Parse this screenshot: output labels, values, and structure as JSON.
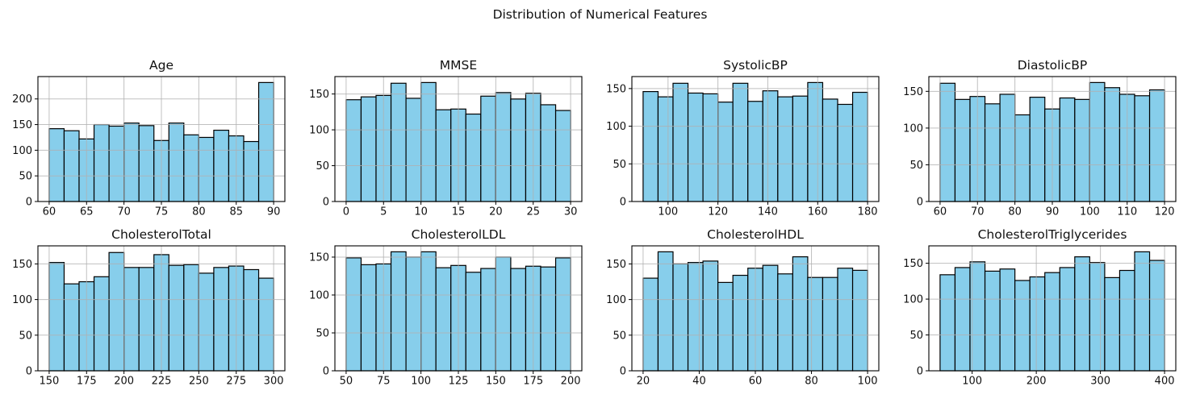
{
  "suptitle": "Distribution of Numerical Features",
  "style": {
    "bar_fill": "#87CEEB",
    "bar_edge": "#000000",
    "grid_color": "#b0b0b0",
    "axis_color": "#000000",
    "background": "#ffffff",
    "text_color": "#111111"
  },
  "chart_data": [
    {
      "type": "bar",
      "subtype": "histogram",
      "title": "Age",
      "bins": 15,
      "bin_start": 60,
      "bin_end": 90,
      "values": [
        142,
        138,
        122,
        150,
        147,
        153,
        148,
        119,
        153,
        130,
        125,
        139,
        128,
        117,
        232
      ],
      "x_ticks": [
        60,
        65,
        70,
        75,
        80,
        85,
        90
      ],
      "y_ticks": [
        0,
        50,
        100,
        150,
        200
      ],
      "xlim": [
        58.5,
        91.5
      ],
      "ylim": [
        0,
        243.6
      ],
      "xlabel": "",
      "ylabel": "",
      "grid": true,
      "legend": false
    },
    {
      "type": "bar",
      "subtype": "histogram",
      "title": "MMSE",
      "bins": 15,
      "bin_start": 0,
      "bin_end": 30,
      "values": [
        142,
        146,
        148,
        165,
        144,
        166,
        128,
        129,
        122,
        147,
        152,
        143,
        151,
        135,
        127
      ],
      "x_ticks": [
        0,
        5,
        10,
        15,
        20,
        25,
        30
      ],
      "y_ticks": [
        0,
        50,
        100,
        150
      ],
      "xlim": [
        -1.5,
        31.5
      ],
      "ylim": [
        0,
        174.3
      ],
      "xlabel": "",
      "ylabel": "",
      "grid": true,
      "legend": false
    },
    {
      "type": "bar",
      "subtype": "histogram",
      "title": "SystolicBP",
      "bins": 15,
      "bin_start": 90,
      "bin_end": 180,
      "values": [
        146,
        139,
        157,
        144,
        143,
        132,
        157,
        133,
        147,
        139,
        140,
        158,
        136,
        129,
        145
      ],
      "x_ticks": [
        100,
        120,
        140,
        160,
        180
      ],
      "y_ticks": [
        0,
        50,
        100,
        150
      ],
      "xlim": [
        85.5,
        184.5
      ],
      "ylim": [
        0,
        165.9
      ],
      "xlabel": "",
      "ylabel": "",
      "grid": true,
      "legend": false
    },
    {
      "type": "bar",
      "subtype": "histogram",
      "title": "DiastolicBP",
      "bins": 15,
      "bin_start": 60,
      "bin_end": 120,
      "values": [
        161,
        139,
        143,
        133,
        146,
        118,
        142,
        126,
        141,
        139,
        162,
        155,
        146,
        144,
        152
      ],
      "x_ticks": [
        60,
        70,
        80,
        90,
        100,
        110,
        120
      ],
      "y_ticks": [
        0,
        50,
        100,
        150
      ],
      "xlim": [
        57,
        123
      ],
      "ylim": [
        0,
        170.1
      ],
      "xlabel": "",
      "ylabel": "",
      "grid": true,
      "legend": false
    },
    {
      "type": "bar",
      "subtype": "histogram",
      "title": "CholesterolTotal",
      "bins": 15,
      "bin_start": 150,
      "bin_end": 300,
      "values": [
        152,
        122,
        125,
        132,
        166,
        145,
        145,
        163,
        148,
        149,
        137,
        145,
        147,
        142,
        130
      ],
      "x_ticks": [
        150,
        175,
        200,
        225,
        250,
        275,
        300
      ],
      "y_ticks": [
        0,
        50,
        100,
        150
      ],
      "xlim": [
        142.5,
        307.5
      ],
      "ylim": [
        0,
        175.35
      ],
      "xlabel": "",
      "ylabel": "",
      "grid": true,
      "legend": false
    },
    {
      "type": "bar",
      "subtype": "histogram",
      "title": "CholesterolLDL",
      "bins": 15,
      "bin_start": 50,
      "bin_end": 200,
      "values": [
        149,
        140,
        141,
        157,
        150,
        157,
        136,
        139,
        130,
        135,
        150,
        135,
        138,
        137,
        149
      ],
      "x_ticks": [
        50,
        75,
        100,
        125,
        150,
        175,
        200
      ],
      "y_ticks": [
        0,
        50,
        100,
        150
      ],
      "xlim": [
        42.5,
        207.5
      ],
      "ylim": [
        0,
        164.85
      ],
      "xlabel": "",
      "ylabel": "",
      "grid": true,
      "legend": false
    },
    {
      "type": "bar",
      "subtype": "histogram",
      "title": "CholesterolHDL",
      "bins": 15,
      "bin_start": 20,
      "bin_end": 100,
      "values": [
        130,
        167,
        150,
        152,
        154,
        124,
        134,
        144,
        148,
        136,
        160,
        131,
        131,
        144,
        141
      ],
      "x_ticks": [
        20,
        40,
        60,
        80,
        100
      ],
      "y_ticks": [
        0,
        50,
        100,
        150
      ],
      "xlim": [
        16,
        104
      ],
      "ylim": [
        0,
        175.35
      ],
      "xlabel": "",
      "ylabel": "",
      "grid": true,
      "legend": false
    },
    {
      "type": "bar",
      "subtype": "histogram",
      "title": "CholesterolTriglycerides",
      "bins": 15,
      "bin_start": 50,
      "bin_end": 400,
      "values": [
        134,
        144,
        152,
        139,
        142,
        126,
        131,
        137,
        144,
        159,
        151,
        130,
        140,
        166,
        154
      ],
      "x_ticks": [
        100,
        200,
        300,
        400
      ],
      "y_ticks": [
        0,
        50,
        100,
        150
      ],
      "xlim": [
        32.5,
        417.5
      ],
      "ylim": [
        0,
        174.3
      ],
      "xlabel": "",
      "ylabel": "",
      "grid": true,
      "legend": false
    }
  ]
}
